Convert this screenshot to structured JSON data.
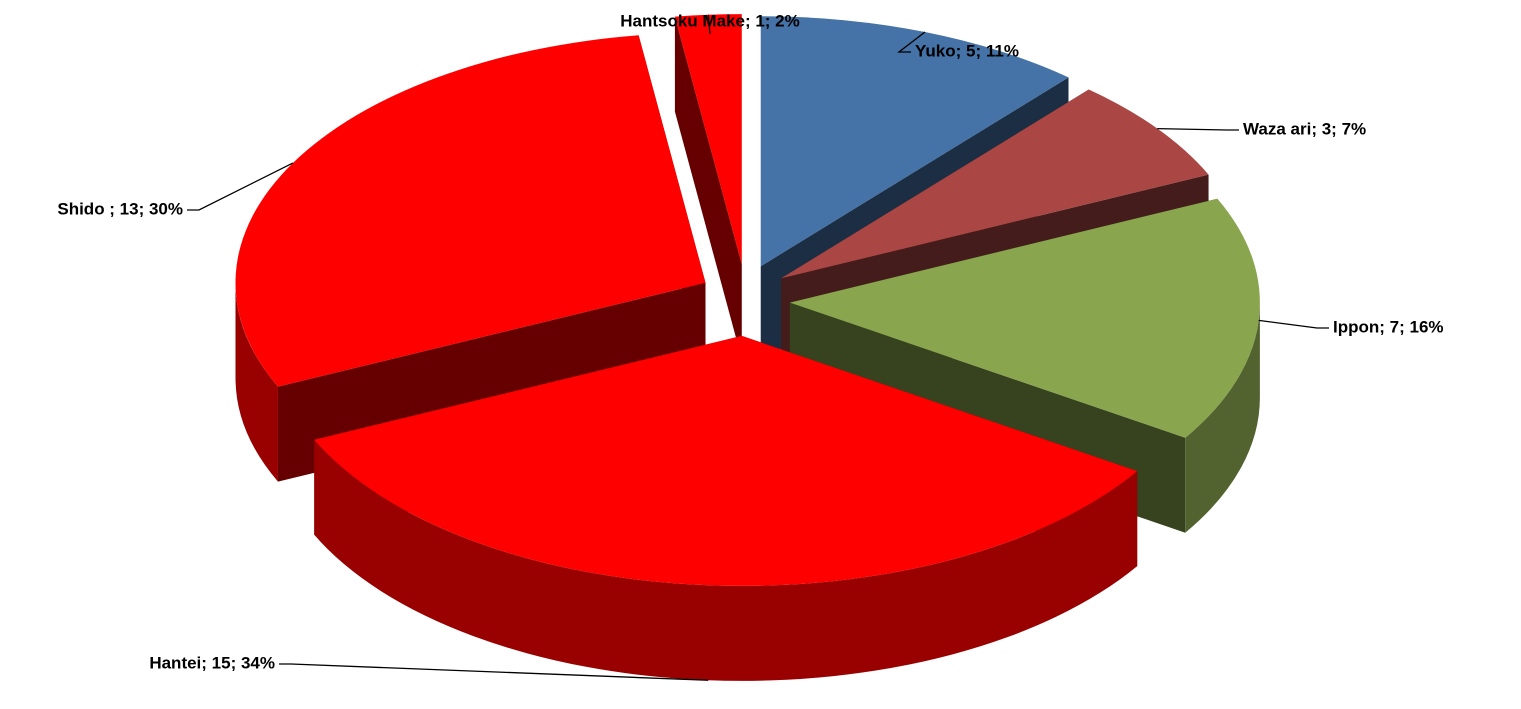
{
  "chart_data": {
    "type": "pie3d",
    "values": [
      5,
      3,
      7,
      15,
      13,
      1
    ],
    "value_labels": [
      "Yuko; 5; 11%",
      "Waza ari; 3; 7%",
      "Ippon; 7; 16%",
      "Hantei; 15; 34%",
      "Shido ; 13; 30%",
      "Hantsoku Make; 1; 2%"
    ],
    "colors": [
      "#4572a7",
      "#aa4643",
      "#89a54e",
      "#ff0000",
      "#ff0000",
      "#ff0000"
    ]
  }
}
